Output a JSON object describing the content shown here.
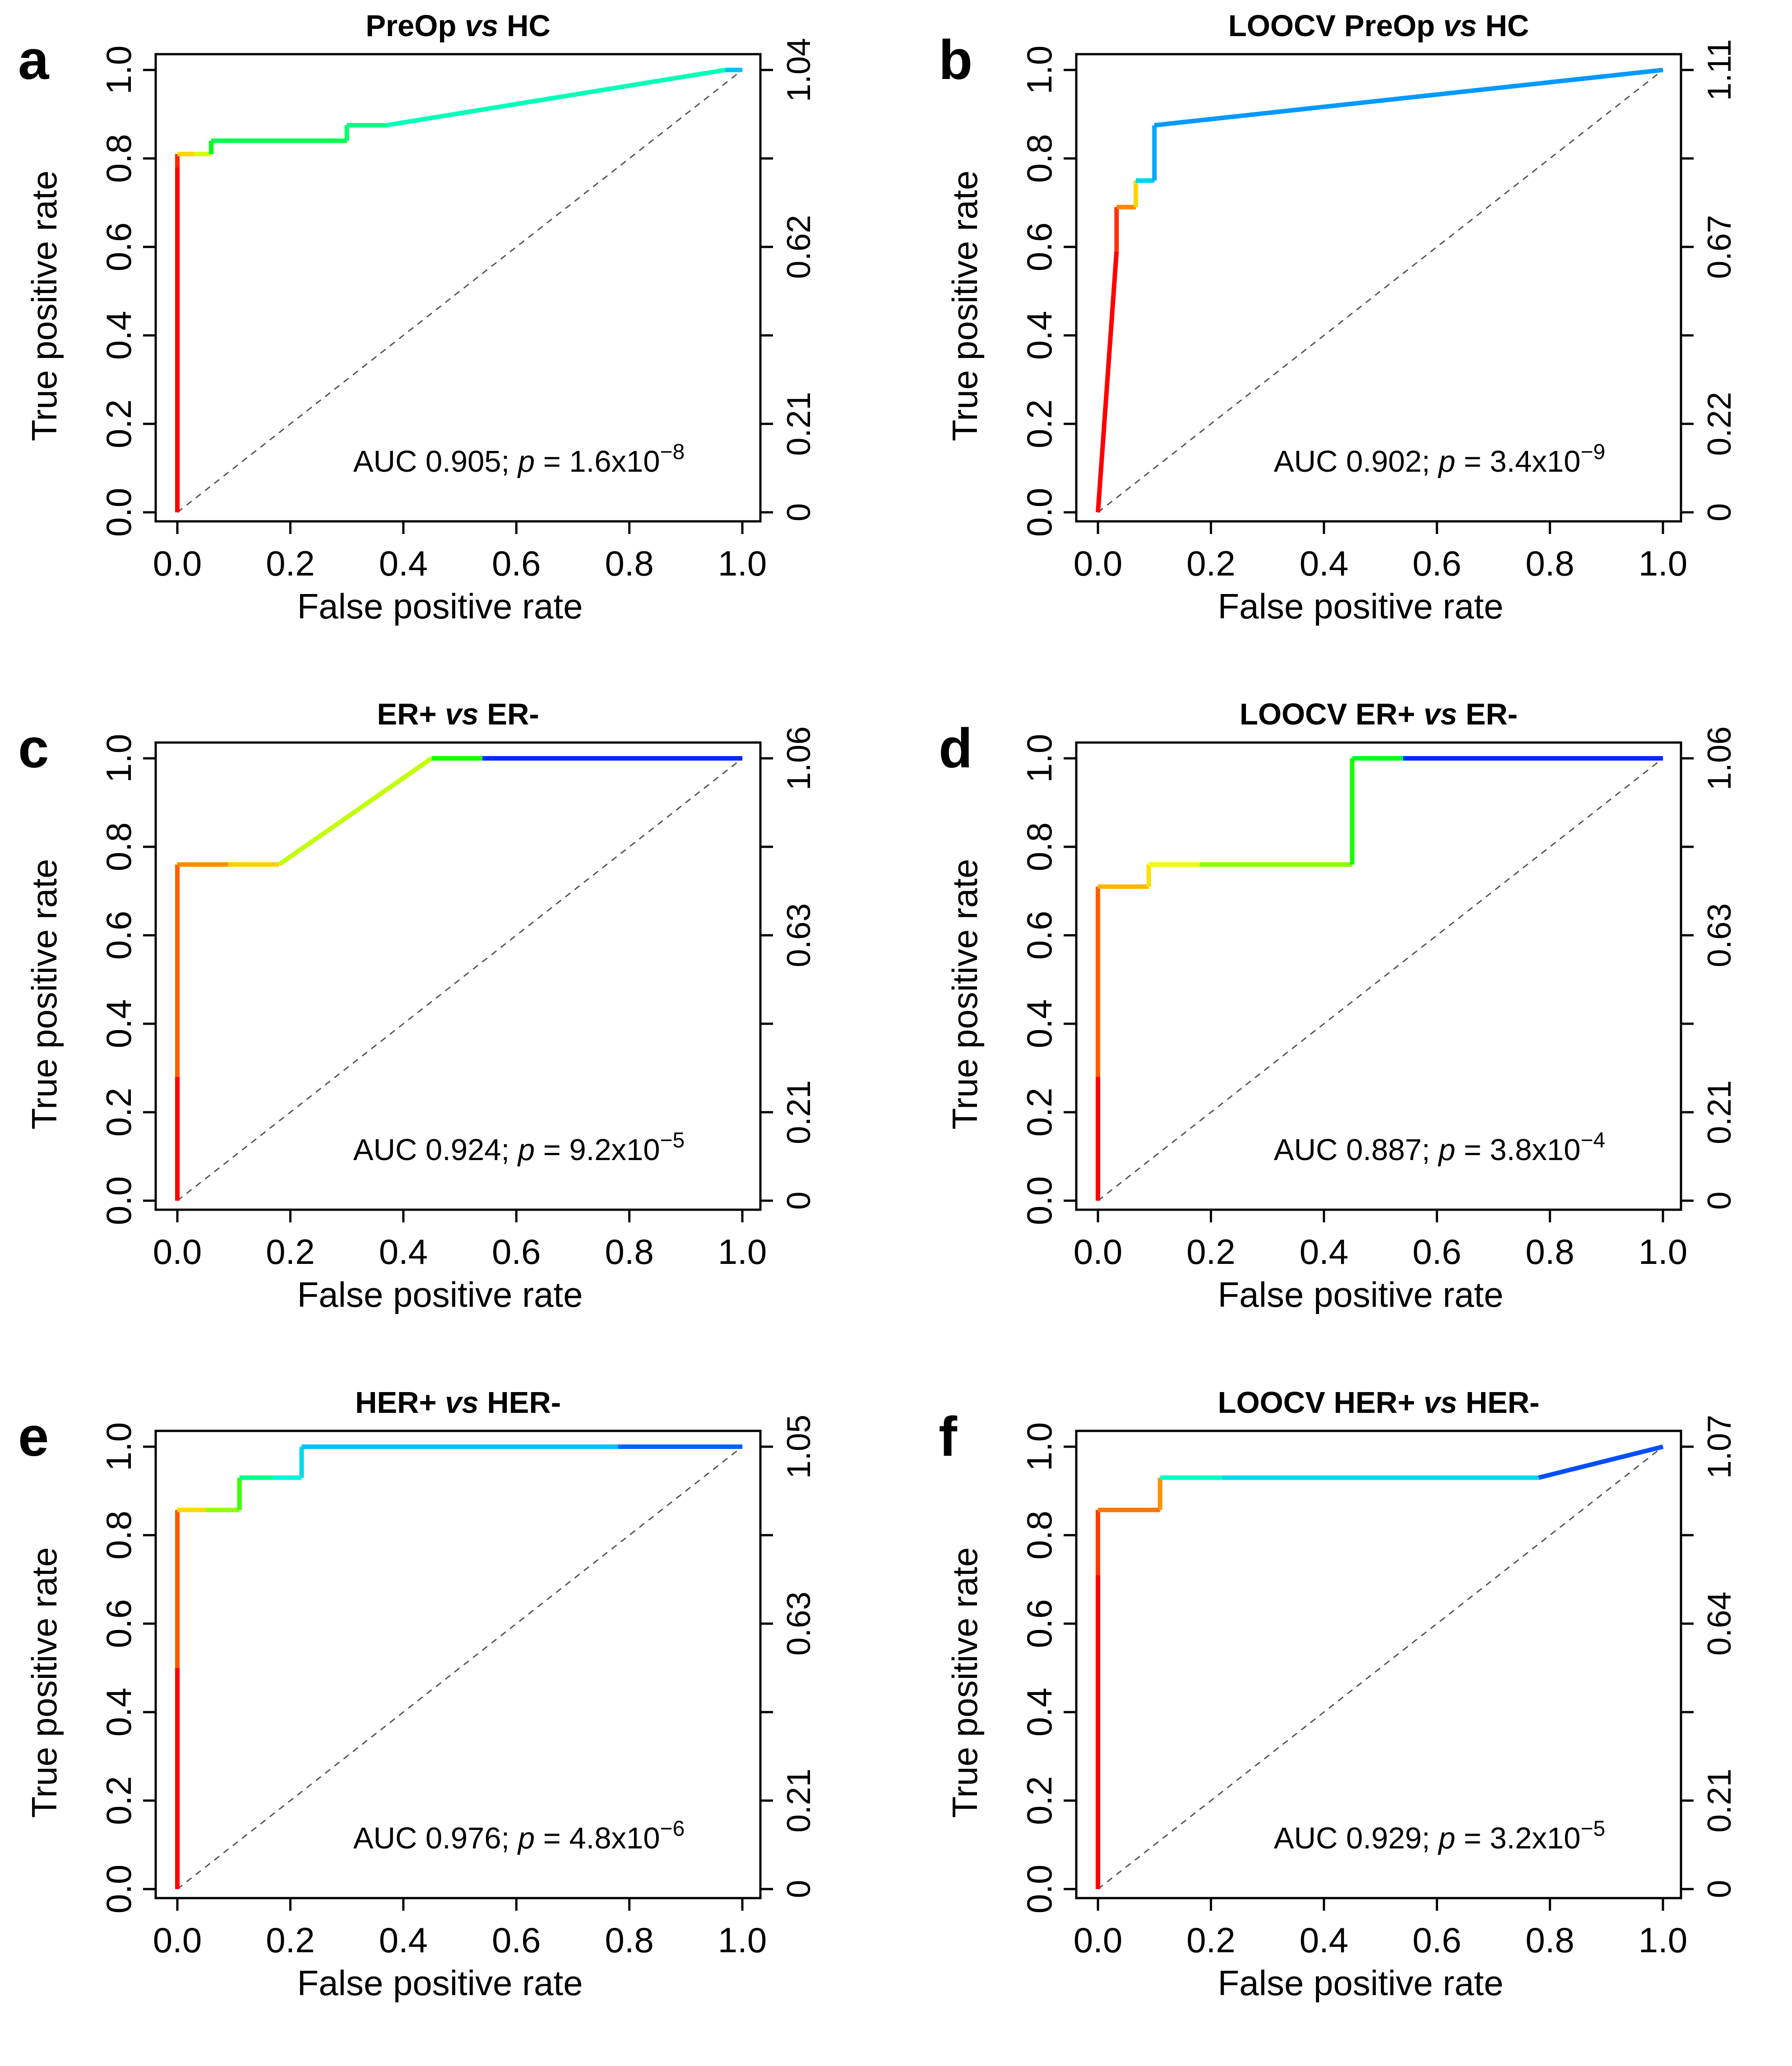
{
  "chart_data": [
    {
      "type": "line",
      "panel": "a",
      "title": "PreOp vs HC",
      "title_pre": "PreOp ",
      "title_vs": "vs",
      "title_post": " HC",
      "xlabel": "False positive rate",
      "ylabel": "True positive rate",
      "xlim": [
        0,
        1
      ],
      "ylim": [
        0,
        1
      ],
      "x_ticks": [
        "0.0",
        "0.2",
        "0.4",
        "0.6",
        "0.8",
        "1.0"
      ],
      "y_ticks": [
        "0.0",
        "0.2",
        "0.4",
        "0.6",
        "0.8",
        "1.0"
      ],
      "colorbar_ticks": [
        "0",
        "0.21",
        "0.62",
        "1.04"
      ],
      "colorbar_max": 1.04,
      "auc_text": {
        "pre": "AUC 0.905; ",
        "p": "p",
        "mid": " = 1.6x10",
        "exp": "−8"
      },
      "roc": {
        "x": [
          0,
          0,
          0,
          0.03,
          0.06,
          0.06,
          0.3,
          0.3,
          0.37,
          0.97,
          1.0
        ],
        "y": [
          0,
          0.78,
          0.81,
          0.81,
          0.81,
          0.84,
          0.84,
          0.875,
          0.875,
          1.0,
          1.0
        ],
        "cutoff": [
          1.04,
          1.0,
          0.8,
          0.72,
          0.55,
          0.5,
          0.47,
          0.45,
          0.4,
          0.25,
          0.22
        ]
      },
      "diagonal": true
    },
    {
      "type": "line",
      "panel": "b",
      "title": "LOOCV PreOp vs HC",
      "title_pre": "LOOCV PreOp ",
      "title_vs": "vs",
      "title_post": " HC",
      "xlabel": "False positive rate",
      "ylabel": "True positive rate",
      "xlim": [
        0,
        1
      ],
      "ylim": [
        0,
        1
      ],
      "x_ticks": [
        "0.0",
        "0.2",
        "0.4",
        "0.6",
        "0.8",
        "1.0"
      ],
      "y_ticks": [
        "0.0",
        "0.2",
        "0.4",
        "0.6",
        "0.8",
        "1.0"
      ],
      "colorbar_ticks": [
        "0",
        "0.22",
        "0.67",
        "1.11"
      ],
      "colorbar_max": 1.11,
      "auc_text": {
        "pre": "AUC 0.902; ",
        "p": "p",
        "mid": " = 3.4x10",
        "exp": "−9"
      },
      "roc": {
        "x": [
          0,
          0.033,
          0.033,
          0.067,
          0.067,
          0.1,
          0.1,
          1.0
        ],
        "y": [
          0,
          0.59,
          0.69,
          0.69,
          0.75,
          0.75,
          0.875,
          1.0
        ],
        "cutoff": [
          1.11,
          1.05,
          0.95,
          0.85,
          0.3,
          0.22,
          0.2,
          0.15
        ]
      },
      "diagonal": true
    },
    {
      "type": "line",
      "panel": "c",
      "title": "ER+ vs ER-",
      "title_pre": "ER+ ",
      "title_vs": "vs",
      "title_post": " ER-",
      "xlabel": "False positive rate",
      "ylabel": "True positive rate",
      "xlim": [
        0,
        1
      ],
      "ylim": [
        0,
        1
      ],
      "x_ticks": [
        "0.0",
        "0.2",
        "0.4",
        "0.6",
        "0.8",
        "1.0"
      ],
      "y_ticks": [
        "0.0",
        "0.2",
        "0.4",
        "0.6",
        "0.8",
        "1.0"
      ],
      "colorbar_ticks": [
        "0",
        "0.21",
        "0.63",
        "1.06"
      ],
      "colorbar_max": 1.06,
      "auc_text": {
        "pre": "AUC 0.924; ",
        "p": "p",
        "mid": " = 9.2x10",
        "exp": "−5"
      },
      "roc": {
        "x": [
          0,
          0,
          0,
          0.09,
          0.18,
          0.45,
          0.54,
          1.0
        ],
        "y": [
          0,
          0.28,
          0.76,
          0.76,
          0.76,
          1.0,
          1.0,
          1.0
        ],
        "cutoff": [
          1.06,
          0.95,
          0.9,
          0.82,
          0.72,
          0.6,
          0.05,
          0.0
        ]
      },
      "diagonal": true
    },
    {
      "type": "line",
      "panel": "d",
      "title": "LOOCV ER+ vs ER-",
      "title_pre": "LOOCV ER+ ",
      "title_vs": "vs",
      "title_post": " ER-",
      "xlabel": "False positive rate",
      "ylabel": "True positive rate",
      "xlim": [
        0,
        1
      ],
      "ylim": [
        0,
        1
      ],
      "x_ticks": [
        "0.0",
        "0.2",
        "0.4",
        "0.6",
        "0.8",
        "1.0"
      ],
      "y_ticks": [
        "0.0",
        "0.2",
        "0.4",
        "0.6",
        "0.8",
        "1.0"
      ],
      "colorbar_ticks": [
        "0",
        "0.21",
        "0.63",
        "1.06"
      ],
      "colorbar_max": 1.06,
      "auc_text": {
        "pre": "AUC 0.887; ",
        "p": "p",
        "mid": " = 3.8x10",
        "exp": "−4"
      },
      "roc": {
        "x": [
          0,
          0,
          0,
          0.09,
          0.09,
          0.18,
          0.45,
          0.45,
          0.54,
          1.0
        ],
        "y": [
          0,
          0.28,
          0.71,
          0.71,
          0.76,
          0.76,
          0.76,
          1.0,
          1.0,
          1.0
        ],
        "cutoff": [
          1.06,
          0.95,
          0.85,
          0.8,
          0.75,
          0.68,
          0.6,
          0.55,
          0.05,
          0.0
        ]
      },
      "diagonal": true
    },
    {
      "type": "line",
      "panel": "e",
      "title": "HER+ vs HER-",
      "title_pre": "HER+ ",
      "title_vs": "vs",
      "title_post": " HER-",
      "xlabel": "False positive rate",
      "ylabel": "True positive rate",
      "xlim": [
        0,
        1
      ],
      "ylim": [
        0,
        1
      ],
      "x_ticks": [
        "0.0",
        "0.2",
        "0.4",
        "0.6",
        "0.8",
        "1.0"
      ],
      "y_ticks": [
        "0.0",
        "0.2",
        "0.4",
        "0.6",
        "0.8",
        "1.0"
      ],
      "colorbar_ticks": [
        "0",
        "0.21",
        "0.63",
        "1.05"
      ],
      "colorbar_max": 1.05,
      "auc_text": {
        "pre": "AUC 0.976; ",
        "p": "p",
        "mid": " = 4.8x10",
        "exp": "−6"
      },
      "roc": {
        "x": [
          0,
          0,
          0,
          0.05,
          0.11,
          0.11,
          0.17,
          0.22,
          0.22,
          0.78,
          1.0
        ],
        "y": [
          0,
          0.5,
          0.857,
          0.857,
          0.857,
          0.93,
          0.93,
          0.93,
          1.0,
          1.0,
          1.0
        ],
        "cutoff": [
          1.05,
          0.95,
          0.8,
          0.68,
          0.62,
          0.45,
          0.35,
          0.3,
          0.25,
          0.12,
          0.0
        ]
      },
      "diagonal": true
    },
    {
      "type": "line",
      "panel": "f",
      "title": "LOOCV HER+ vs HER-",
      "title_pre": "LOOCV HER+ ",
      "title_vs": "vs",
      "title_post": " HER-",
      "xlabel": "False positive rate",
      "ylabel": "True positive rate",
      "xlim": [
        0,
        1
      ],
      "ylim": [
        0,
        1
      ],
      "x_ticks": [
        "0.0",
        "0.2",
        "0.4",
        "0.6",
        "0.8",
        "1.0"
      ],
      "y_ticks": [
        "0.0",
        "0.2",
        "0.4",
        "0.6",
        "0.8",
        "1.0"
      ],
      "colorbar_ticks": [
        "0",
        "0.21",
        "0.64",
        "1.07"
      ],
      "colorbar_max": 1.07,
      "auc_text": {
        "pre": "AUC 0.929; ",
        "p": "p",
        "mid": " = 3.2x10",
        "exp": "−5"
      },
      "roc": {
        "x": [
          0,
          0,
          0,
          0.11,
          0.11,
          0.22,
          0.78,
          1.0
        ],
        "y": [
          0,
          0.71,
          0.857,
          0.857,
          0.93,
          0.93,
          0.93,
          1.0
        ],
        "cutoff": [
          1.07,
          1.0,
          0.93,
          0.9,
          0.4,
          0.3,
          0.1,
          0.05
        ]
      },
      "diagonal": true
    }
  ]
}
